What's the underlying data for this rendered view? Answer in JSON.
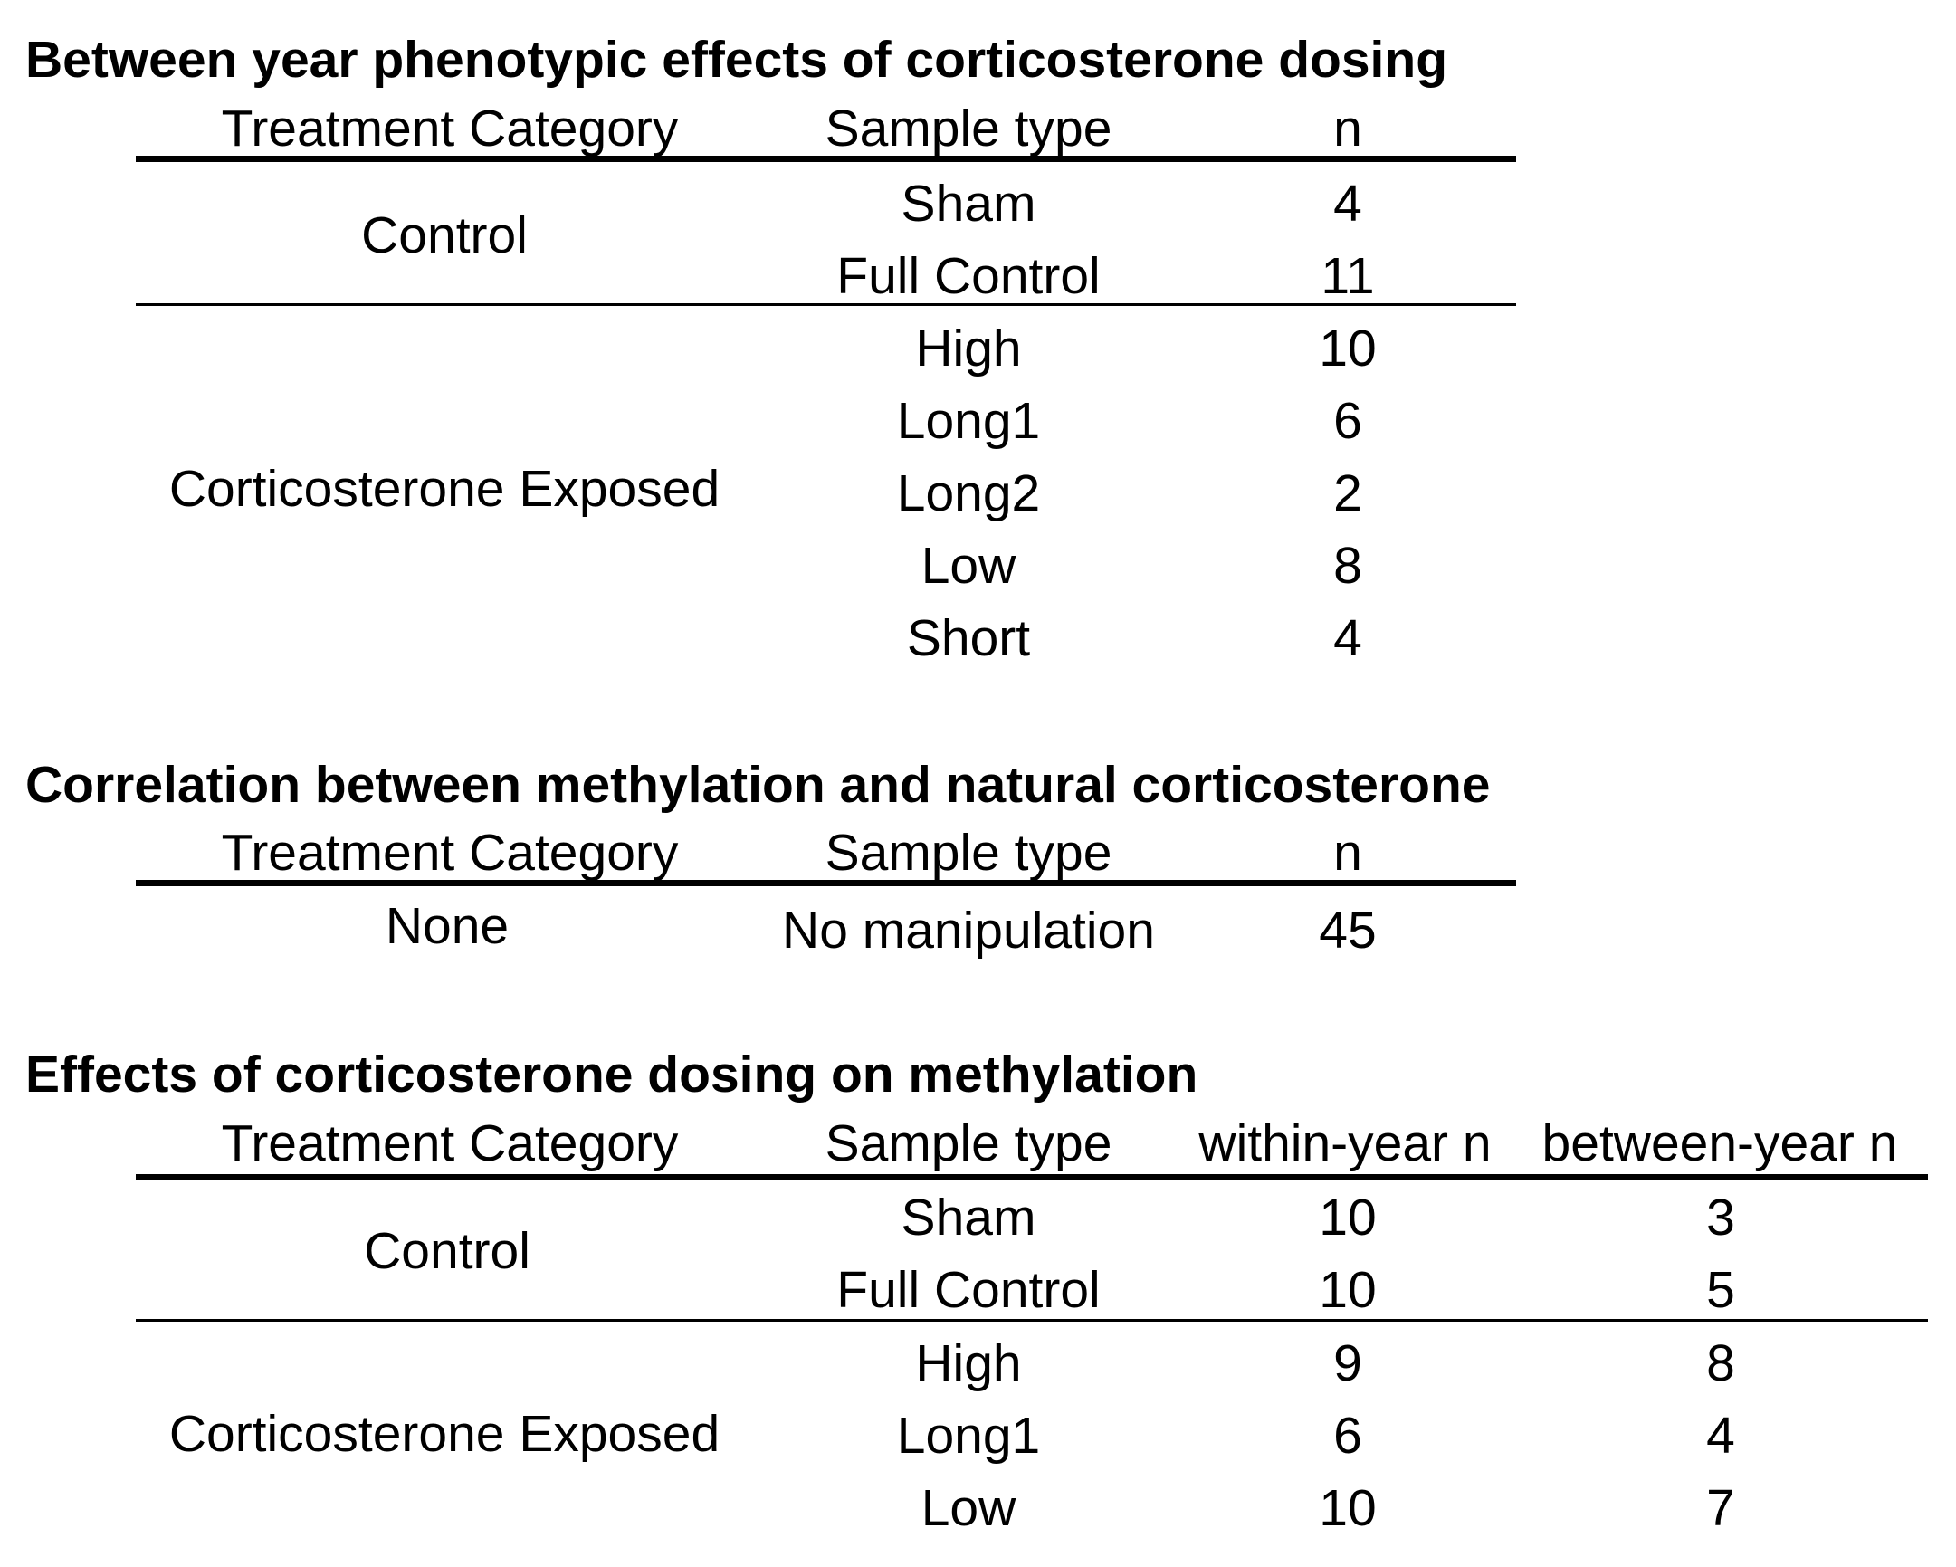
{
  "sections": [
    {
      "title": "Between year phenotypic effects of corticosterone dosing",
      "headers": [
        "Treatment Category",
        "Sample type",
        "n"
      ],
      "groups": [
        {
          "category": "Control",
          "rows": [
            {
              "sample": "Sham",
              "n": "4"
            },
            {
              "sample": "Full Control",
              "n": "11"
            }
          ]
        },
        {
          "category": "Corticosterone Exposed",
          "rows": [
            {
              "sample": "High",
              "n": "10"
            },
            {
              "sample": "Long1",
              "n": "6"
            },
            {
              "sample": "Long2",
              "n": "2"
            },
            {
              "sample": "Low",
              "n": "8"
            },
            {
              "sample": "Short",
              "n": "4"
            }
          ]
        }
      ]
    },
    {
      "title": "Correlation between methylation and natural corticosterone",
      "headers": [
        "Treatment Category",
        "Sample type",
        "n"
      ],
      "groups": [
        {
          "category": "None",
          "rows": [
            {
              "sample": "No manipulation",
              "n": "45"
            }
          ]
        }
      ]
    },
    {
      "title": "Effects of corticosterone dosing on methylation",
      "headers": [
        "Treatment Category",
        "Sample type",
        "within-year n",
        "between-year n"
      ],
      "groups": [
        {
          "category": "Control",
          "rows": [
            {
              "sample": "Sham",
              "within_n": "10",
              "between_n": "3"
            },
            {
              "sample": "Full Control",
              "within_n": "10",
              "between_n": "5"
            }
          ]
        },
        {
          "category": "Corticosterone Exposed",
          "rows": [
            {
              "sample": "High",
              "within_n": "9",
              "between_n": "8"
            },
            {
              "sample": "Long1",
              "within_n": "6",
              "between_n": "4"
            },
            {
              "sample": "Low",
              "within_n": "10",
              "between_n": "7"
            }
          ]
        }
      ]
    }
  ]
}
